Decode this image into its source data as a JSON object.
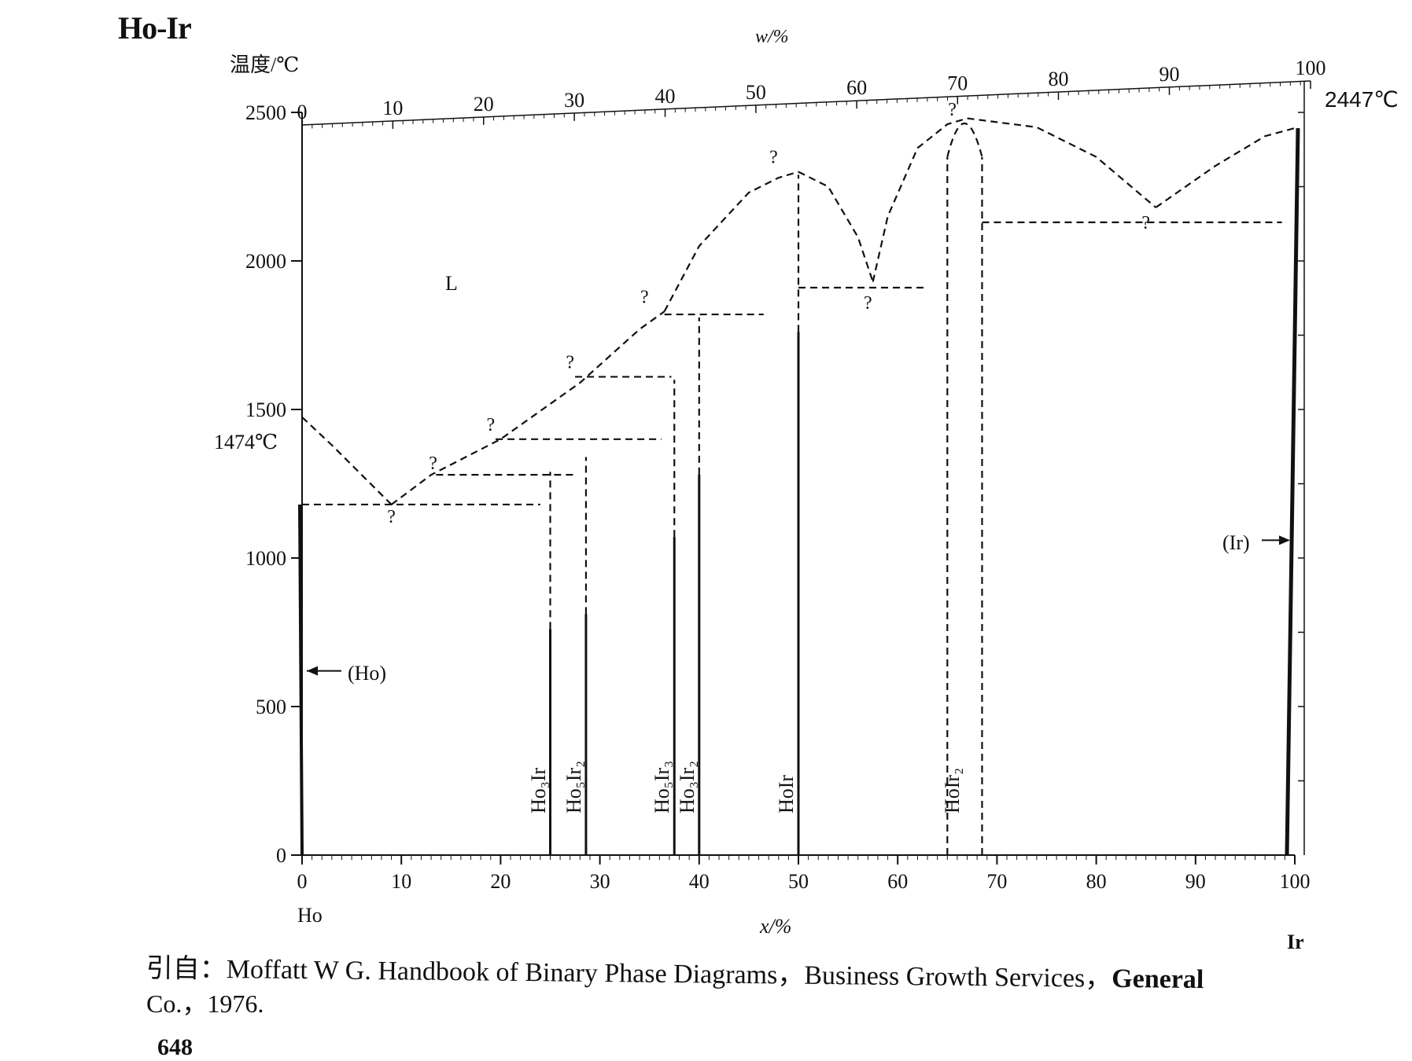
{
  "title": "Ho-Ir",
  "y_axis_label": "温度/℃",
  "top_axis_label": "w/%",
  "bottom_axis_label": "x/%",
  "left_element": "Ho",
  "right_element": "Ir",
  "left_melting_label": "1474℃",
  "right_melting_label": "2447℃",
  "liquid_label": "L",
  "ho_phase_label": "(Ho)",
  "ir_phase_label": "(Ir)",
  "citation": {
    "prefix": "引自：",
    "text": "Moffatt W G.  Handbook of Binary Phase Diagrams，Business Growth Services，",
    "bold_tail": "General",
    "line2": "Co.，1976."
  },
  "page_number": "648",
  "chart_data": {
    "type": "phase-diagram",
    "title": "Ho-Ir",
    "xlabel": "x/%",
    "ylabel": "温度/℃",
    "top_xlabel": "w/%",
    "xlim": [
      0,
      100
    ],
    "ylim": [
      0,
      2500
    ],
    "x_ticks": [
      0,
      10,
      20,
      30,
      40,
      50,
      60,
      70,
      80,
      90,
      100
    ],
    "y_ticks": [
      0,
      500,
      1000,
      1500,
      2000,
      2500
    ],
    "w_ticks": [
      0,
      10,
      20,
      30,
      40,
      50,
      60,
      70,
      80,
      90,
      100
    ],
    "w_tick_x": [
      0,
      9.0,
      18.0,
      27.0,
      36.0,
      45.0,
      55.0,
      65.0,
      75.0,
      86.0,
      100
    ],
    "question_mark_symbol": "?",
    "melting_points": [
      {
        "element": "Ho",
        "x": 0,
        "T": 1474
      },
      {
        "element": "Ir",
        "x": 100,
        "T": 2447
      }
    ],
    "compounds": [
      {
        "name": "Ho₃Ir",
        "x": 25.0,
        "T": 1290
      },
      {
        "name": "Ho₅Ir₂",
        "x": 28.6,
        "T": 1340
      },
      {
        "name": "Ho₅Ir₃",
        "x": 37.5,
        "T": 1600
      },
      {
        "name": "Ho₃Ir₂",
        "x": 40.0,
        "T": 1810
      },
      {
        "name": "HoIr",
        "x": 50.0,
        "T": 2290
      },
      {
        "name": "HoIr₂",
        "x": 66.7,
        "T": 2470,
        "region": [
          65.0,
          68.5
        ]
      }
    ],
    "liquidus": [
      {
        "x": [
          0,
          3,
          6,
          9
        ],
        "T": [
          1474,
          1380,
          1280,
          1180
        ]
      },
      {
        "x": [
          9,
          13,
          20,
          28,
          34,
          36.5
        ],
        "T": [
          1180,
          1280,
          1400,
          1590,
          1770,
          1830
        ]
      },
      {
        "x": [
          36.5,
          40,
          45,
          48,
          50
        ],
        "T": [
          1830,
          2050,
          2230,
          2280,
          2300
        ]
      },
      {
        "x": [
          50,
          53,
          56,
          57.5
        ],
        "T": [
          2300,
          2250,
          2080,
          1930
        ]
      },
      {
        "x": [
          57.5,
          59,
          62,
          65,
          67
        ],
        "T": [
          1930,
          2150,
          2380,
          2460,
          2480
        ]
      },
      {
        "x": [
          67,
          74,
          80,
          86
        ],
        "T": [
          2480,
          2450,
          2350,
          2180
        ]
      },
      {
        "x": [
          86,
          92,
          97,
          100
        ],
        "T": [
          2180,
          2320,
          2420,
          2447
        ]
      }
    ],
    "invariant_lines": [
      {
        "T": 1180,
        "x": [
          0,
          24
        ]
      },
      {
        "T": 1280,
        "x": [
          13.5,
          27.5
        ]
      },
      {
        "T": 1400,
        "x": [
          19.5,
          36.2
        ]
      },
      {
        "T": 1610,
        "x": [
          27.5,
          37.2
        ]
      },
      {
        "T": 1820,
        "x": [
          36.5,
          46.5
        ]
      },
      {
        "T": 1910,
        "x": [
          50,
          63.0
        ]
      },
      {
        "T": 2130,
        "x": [
          68.5,
          98.7
        ]
      }
    ],
    "question_marks": [
      {
        "x": 9,
        "T": 1140
      },
      {
        "x": 13.2,
        "T": 1320
      },
      {
        "x": 19.0,
        "T": 1450
      },
      {
        "x": 27.0,
        "T": 1660
      },
      {
        "x": 34.5,
        "T": 1880
      },
      {
        "x": 47.5,
        "T": 2350
      },
      {
        "x": 57.0,
        "T": 1860
      },
      {
        "x": 65.5,
        "T": 2510
      },
      {
        "x": 85.0,
        "T": 2130
      }
    ],
    "solid_labels": [
      "L",
      "(Ho)",
      "(Ir)"
    ]
  }
}
